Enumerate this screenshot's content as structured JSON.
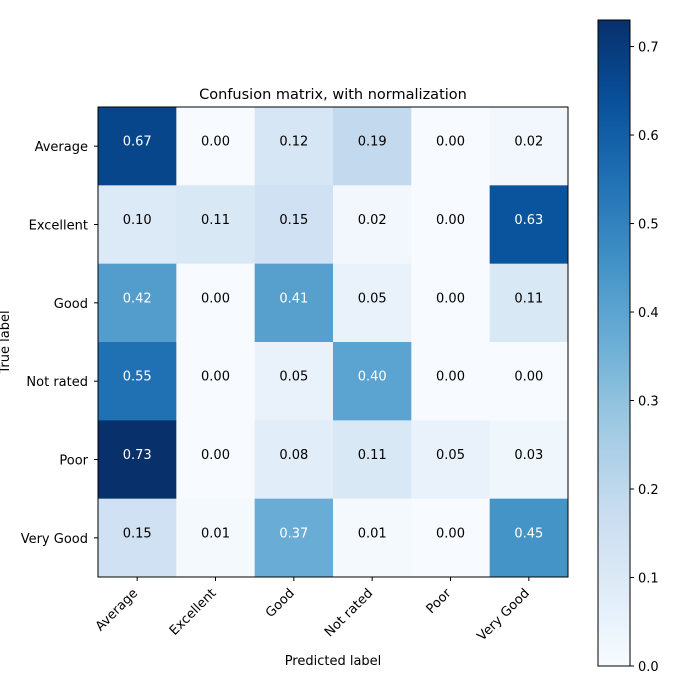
{
  "chart_data": {
    "type": "heatmap",
    "title": "Confusion matrix, with normalization",
    "xlabel": "Predicted label",
    "ylabel": "True label",
    "x_categories": [
      "Average",
      "Excellent",
      "Good",
      "Not rated",
      "Poor",
      "Very Good"
    ],
    "y_categories": [
      "Average",
      "Excellent",
      "Good",
      "Not rated",
      "Poor",
      "Very Good"
    ],
    "values": [
      [
        0.67,
        0.0,
        0.12,
        0.19,
        0.0,
        0.02
      ],
      [
        0.1,
        0.11,
        0.15,
        0.02,
        0.0,
        0.63
      ],
      [
        0.42,
        0.0,
        0.41,
        0.05,
        0.0,
        0.11
      ],
      [
        0.55,
        0.0,
        0.05,
        0.4,
        0.0,
        0.0
      ],
      [
        0.73,
        0.0,
        0.08,
        0.11,
        0.05,
        0.03
      ],
      [
        0.15,
        0.01,
        0.37,
        0.01,
        0.0,
        0.45
      ]
    ],
    "colormap": "Blues",
    "color_range": [
      0,
      0.73
    ],
    "colorbar_ticks": [
      0.0,
      0.1,
      0.2,
      0.3,
      0.4,
      0.5,
      0.6,
      0.7
    ],
    "text_threshold": 0.365,
    "text_color_light": "#ffffff",
    "text_color_dark": "#000000",
    "x_tick_rotation_deg": 45
  }
}
